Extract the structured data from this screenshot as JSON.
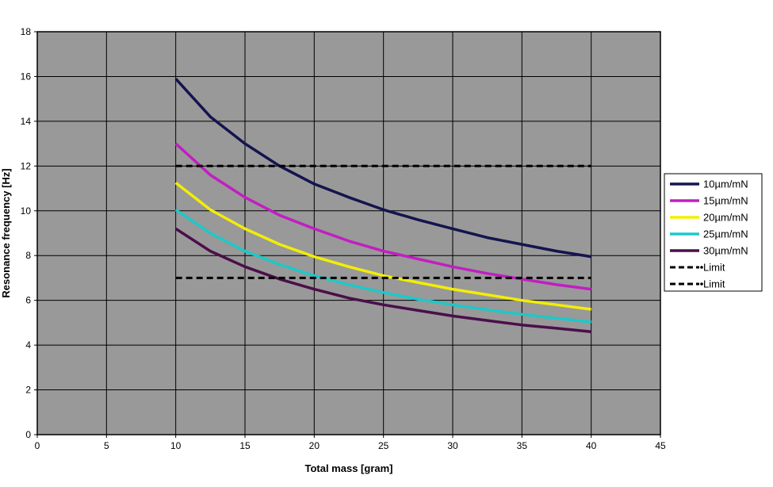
{
  "chart_data": {
    "type": "line",
    "title": "",
    "xlabel": "Total mass [gram]",
    "ylabel": "Resonance frequency [Hz]",
    "xlim": [
      0,
      45
    ],
    "ylim": [
      0,
      18
    ],
    "xticks": [
      0,
      5,
      10,
      15,
      20,
      25,
      30,
      35,
      40,
      45
    ],
    "yticks": [
      0,
      2,
      4,
      6,
      8,
      10,
      12,
      14,
      16,
      18
    ],
    "grid": true,
    "plot_background": "#999999",
    "legend_position": "right",
    "x": [
      10,
      12.5,
      15,
      17.5,
      20,
      22.5,
      25,
      27.5,
      30,
      32.5,
      35,
      37.5,
      40
    ],
    "series": [
      {
        "name": "10µm/mN",
        "color": "#14144f",
        "style": "solid",
        "values": [
          15.9,
          14.2,
          13.0,
          12.0,
          11.2,
          10.6,
          10.05,
          9.6,
          9.2,
          8.8,
          8.5,
          8.2,
          7.95
        ]
      },
      {
        "name": "15µm/mN",
        "color": "#c21ec2",
        "style": "solid",
        "values": [
          13.0,
          11.6,
          10.6,
          9.8,
          9.2,
          8.65,
          8.2,
          7.85,
          7.5,
          7.2,
          6.95,
          6.7,
          6.5
        ]
      },
      {
        "name": "20µm/mN",
        "color": "#f2ee05",
        "style": "solid",
        "values": [
          11.25,
          10.05,
          9.2,
          8.5,
          7.95,
          7.5,
          7.1,
          6.8,
          6.5,
          6.25,
          6.0,
          5.8,
          5.6
        ]
      },
      {
        "name": "25µm/mN",
        "color": "#1ec8c8",
        "style": "solid",
        "values": [
          10.05,
          9.0,
          8.2,
          7.6,
          7.1,
          6.7,
          6.35,
          6.05,
          5.8,
          5.58,
          5.37,
          5.2,
          5.03
        ]
      },
      {
        "name": "30µm/mN",
        "color": "#4a0f4a",
        "style": "solid",
        "values": [
          9.2,
          8.2,
          7.5,
          6.95,
          6.5,
          6.1,
          5.8,
          5.55,
          5.3,
          5.1,
          4.9,
          4.75,
          4.6
        ]
      },
      {
        "name": "Limit",
        "color": "#000000",
        "style": "dashed",
        "values": [
          12,
          12,
          12,
          12,
          12,
          12,
          12,
          12,
          12,
          12,
          12,
          12,
          12
        ]
      },
      {
        "name": "Limit",
        "color": "#000000",
        "style": "dashed",
        "values": [
          7,
          7,
          7,
          7,
          7,
          7,
          7,
          7,
          7,
          7,
          7,
          7,
          7
        ]
      }
    ]
  }
}
